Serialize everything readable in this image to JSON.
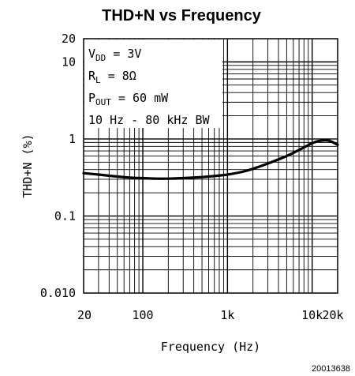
{
  "chart_data": {
    "type": "line",
    "title": "THD+N vs Frequency",
    "xlabel": "Frequency (Hz)",
    "ylabel": "THD+N (%)",
    "xscale": "log",
    "yscale": "log",
    "xlim": [
      20,
      20000
    ],
    "ylim": [
      0.01,
      20
    ],
    "x_ticks": [
      {
        "value": 20,
        "label": "20"
      },
      {
        "value": 100,
        "label": "100"
      },
      {
        "value": 1000,
        "label": "1k"
      },
      {
        "value": 10000,
        "label": "10k"
      },
      {
        "value": 20000,
        "label": "20k"
      }
    ],
    "y_ticks": [
      {
        "value": 20,
        "label": "20"
      },
      {
        "value": 10,
        "label": "10"
      },
      {
        "value": 1,
        "label": "1"
      },
      {
        "value": 0.1,
        "label": "0.1"
      },
      {
        "value": 0.01,
        "label": "0.010"
      }
    ],
    "grid": true,
    "conditions": {
      "vdd": {
        "label": "V",
        "sub": "DD",
        "value": " = 3V"
      },
      "rl": {
        "label": "R",
        "sub": "L",
        "value": " = 8Ω"
      },
      "pout": {
        "label": "P",
        "sub": "OUT",
        "value": " = 60 mW"
      },
      "bw": "10 Hz - 80 kHz BW"
    },
    "series": [
      {
        "x": [
          20,
          30,
          50,
          70,
          100,
          150,
          200,
          300,
          500,
          700,
          1000,
          1500,
          2000,
          3000,
          5000,
          7000,
          10000,
          12000,
          15000,
          17000,
          20000
        ],
        "y": [
          0.36,
          0.345,
          0.325,
          0.315,
          0.31,
          0.305,
          0.305,
          0.31,
          0.32,
          0.33,
          0.345,
          0.375,
          0.41,
          0.48,
          0.6,
          0.72,
          0.88,
          0.94,
          0.96,
          0.92,
          0.84
        ]
      }
    ]
  },
  "figure_id": "20013638"
}
